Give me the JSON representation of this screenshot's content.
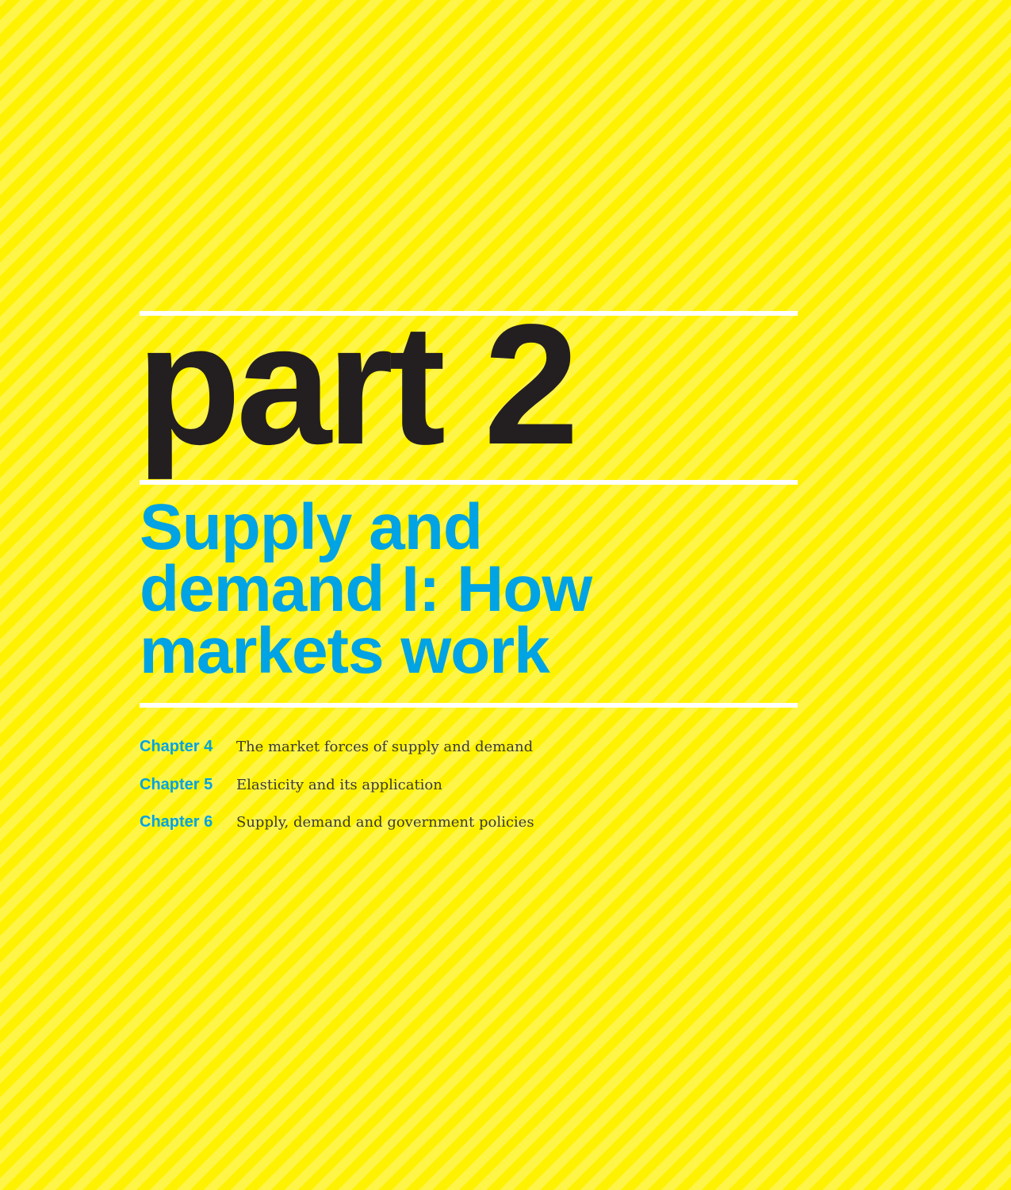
{
  "part": {
    "title": "part 2",
    "subtitle_lines": [
      "Supply and",
      "demand I: How",
      "markets work"
    ]
  },
  "chapters": [
    {
      "number": "Chapter 4",
      "title": "The market forces of supply and demand"
    },
    {
      "number": "Chapter 5",
      "title": "Elasticity and its application"
    },
    {
      "number": "Chapter 6",
      "title": "Supply, demand and government policies"
    }
  ],
  "colors": {
    "background": "#fff200",
    "stripe": "#fff547",
    "title": "#231f20",
    "accent": "#00a3e4",
    "rule": "#ffffff"
  }
}
